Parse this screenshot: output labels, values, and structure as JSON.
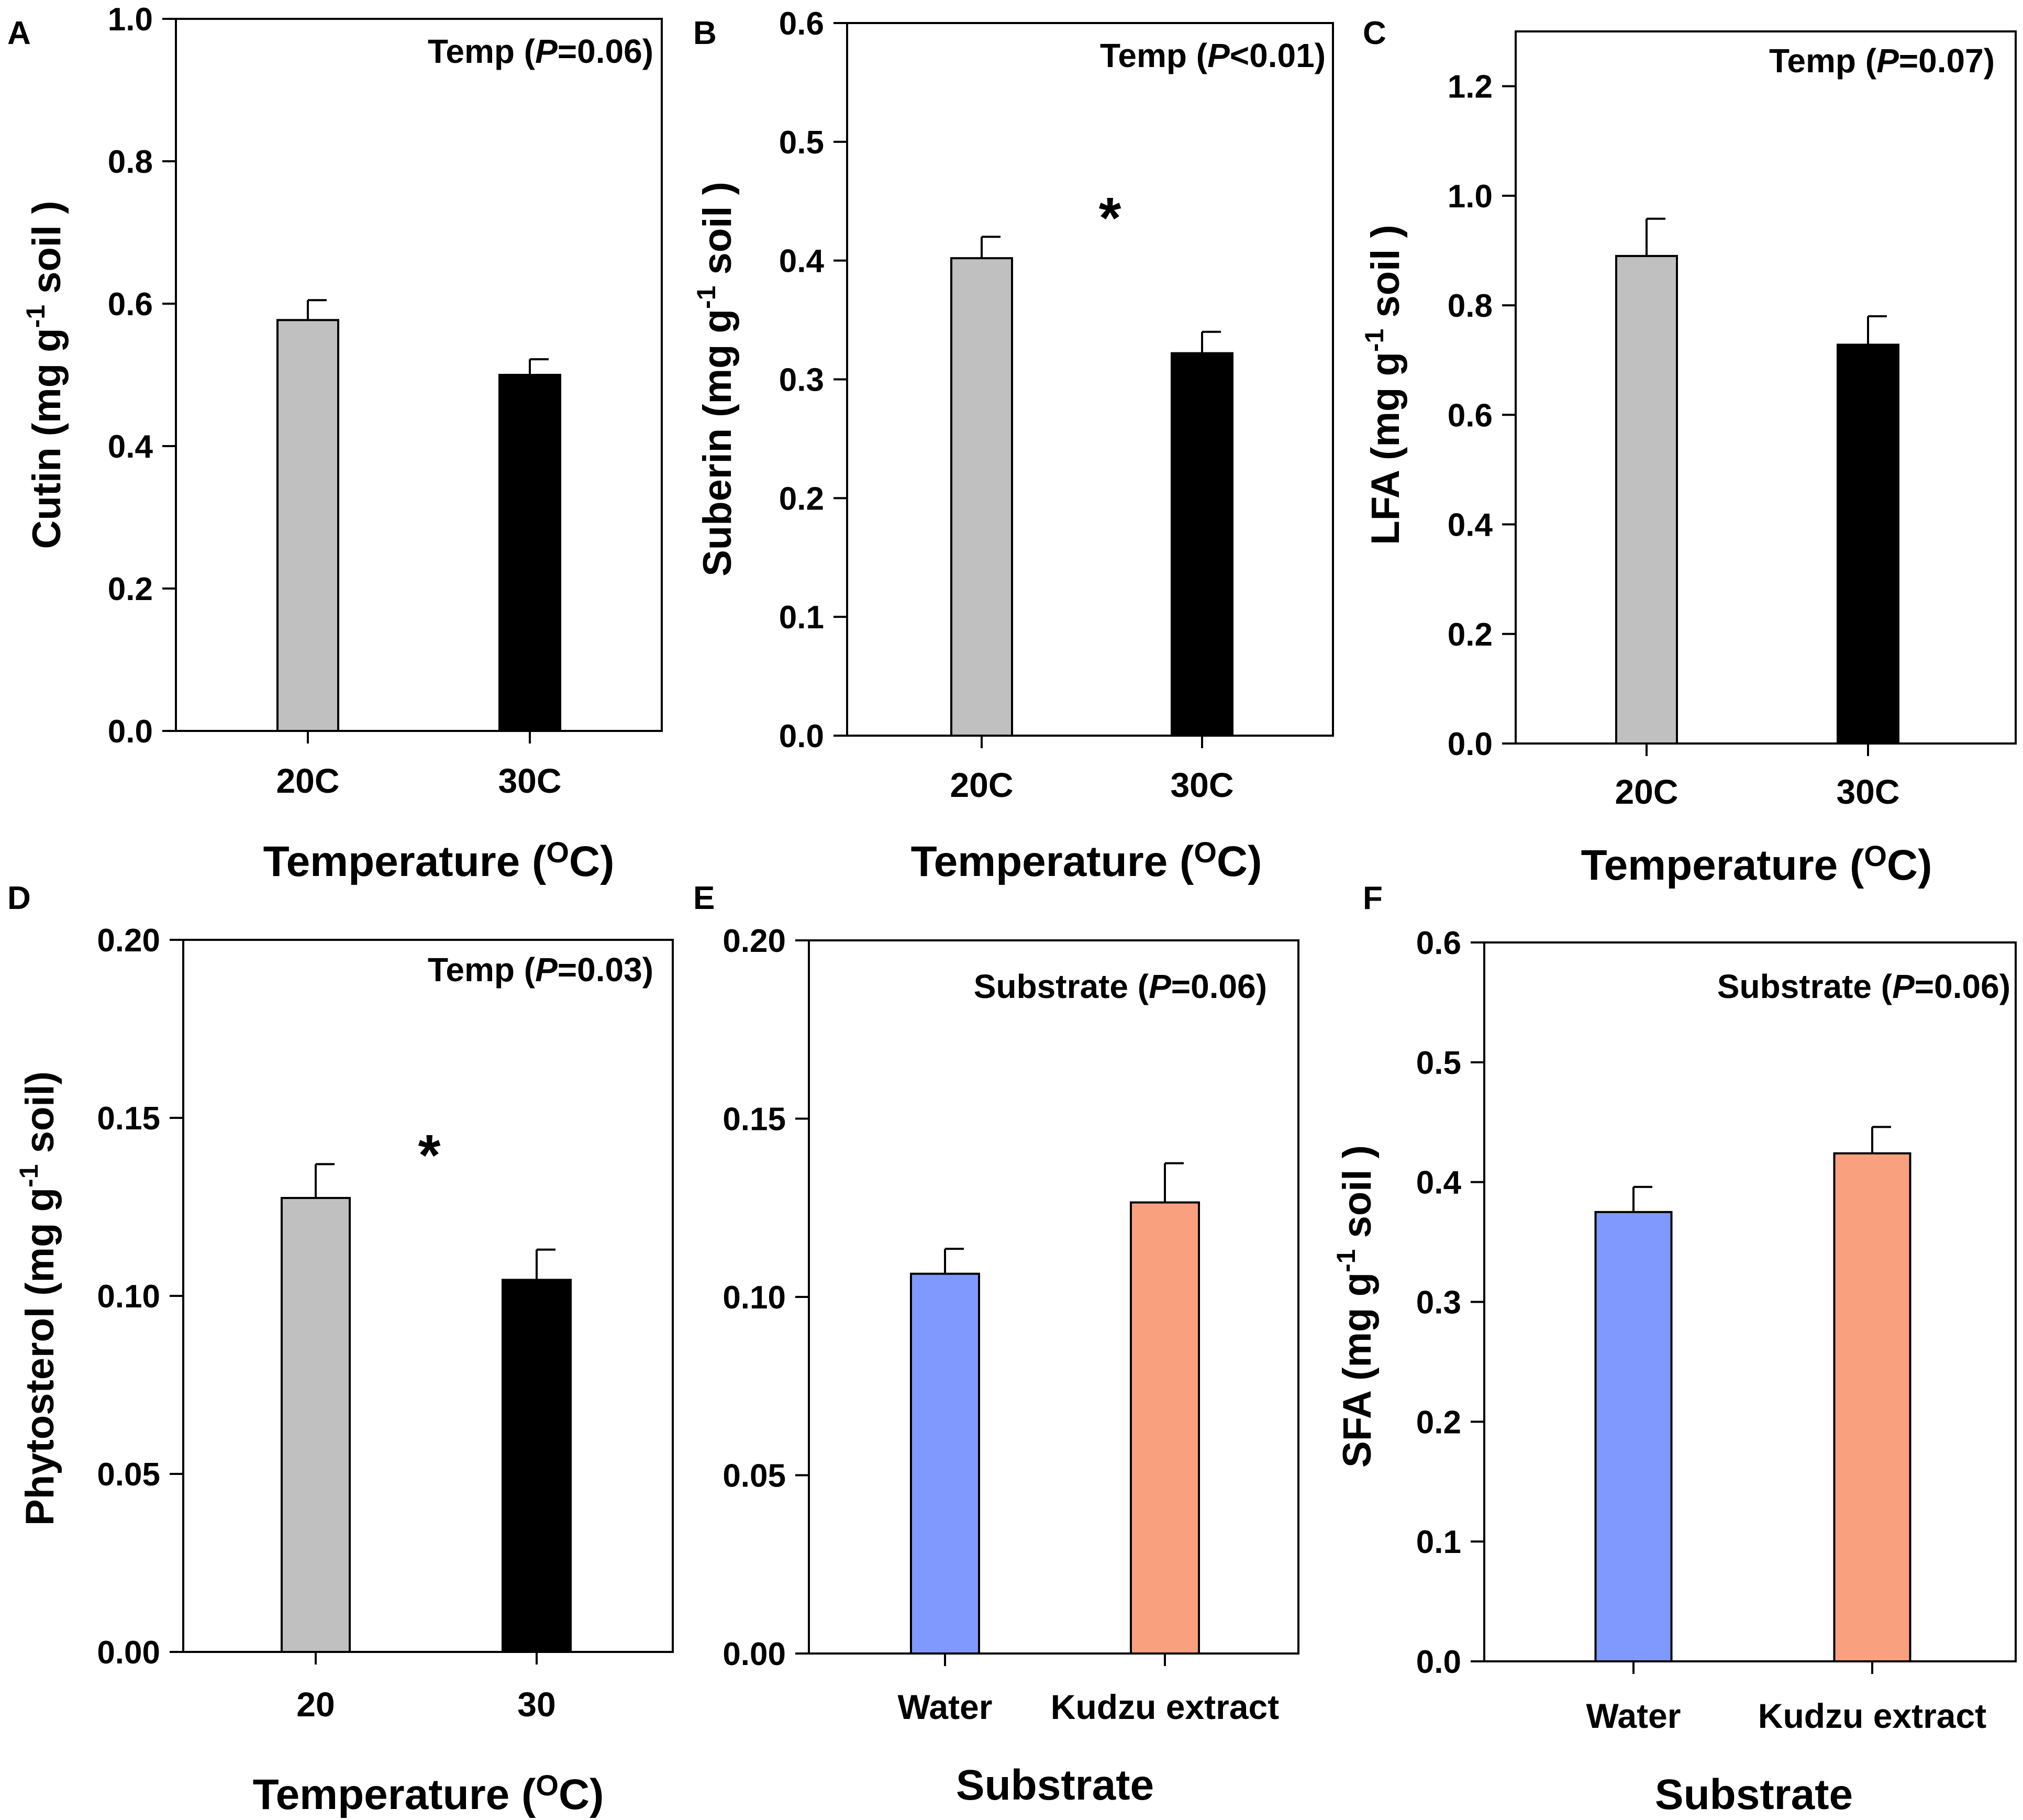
{
  "figure": {
    "background": "#ffffff"
  },
  "chart_data": [
    {
      "panel": "A",
      "type": "bar",
      "categories": [
        "20C",
        "30C"
      ],
      "values": [
        0.577,
        0.5
      ],
      "errors": [
        0.028,
        0.022
      ],
      "colors": [
        "#c0c0c0",
        "#000000"
      ],
      "ylim": [
        0,
        1.0
      ],
      "yticks": [
        "0.0",
        "0.2",
        "0.4",
        "0.6",
        "0.8",
        "1.0"
      ],
      "ylabel": {
        "main": "Cutin (mg g",
        "sup": "-1",
        "rest": " soil )"
      },
      "xlabel": {
        "main": "Temperature (",
        "sup": "O",
        "rest": "C)"
      },
      "annotation": {
        "prefix": "Temp (",
        "italic": "P",
        "suffix": "=0.06)"
      },
      "significance": ""
    },
    {
      "panel": "B",
      "type": "bar",
      "categories": [
        "20C",
        "30C"
      ],
      "values": [
        0.402,
        0.322
      ],
      "errors": [
        0.018,
        0.018
      ],
      "colors": [
        "#c0c0c0",
        "#000000"
      ],
      "ylim": [
        0,
        0.6
      ],
      "yticks": [
        "0.0",
        "0.1",
        "0.2",
        "0.3",
        "0.4",
        "0.5",
        "0.6"
      ],
      "ylabel": {
        "main": "Suberin (mg g",
        "sup": "-1",
        "rest": " soil )"
      },
      "xlabel": {
        "main": "Temperature (",
        "sup": "O",
        "rest": "C)"
      },
      "annotation": {
        "prefix": "Temp (",
        "italic": "P",
        "suffix": "<0.01)"
      },
      "significance": "*"
    },
    {
      "panel": "C",
      "type": "bar",
      "categories": [
        "20C",
        "30C"
      ],
      "values": [
        0.89,
        0.728
      ],
      "errors": [
        0.068,
        0.052
      ],
      "colors": [
        "#c0c0c0",
        "#000000"
      ],
      "ylim": [
        0,
        1.3
      ],
      "yticks": [
        "0.0",
        "0.2",
        "0.4",
        "0.6",
        "0.8",
        "1.0",
        "1.2"
      ],
      "ylabel": {
        "main": "LFA (mg g",
        "sup": "-1",
        "rest": " soil )"
      },
      "xlabel": {
        "main": "Temperature (",
        "sup": "O",
        "rest": "C)"
      },
      "annotation": {
        "prefix": "Temp (",
        "italic": "P",
        "suffix": "=0.07)"
      },
      "significance": ""
    },
    {
      "panel": "D",
      "type": "bar",
      "categories": [
        "20",
        "30"
      ],
      "values": [
        0.1275,
        0.1045
      ],
      "errors": [
        0.0095,
        0.0085
      ],
      "colors": [
        "#c0c0c0",
        "#000000"
      ],
      "ylim": [
        0,
        0.2
      ],
      "yticks": [
        "0.00",
        "0.05",
        "0.10",
        "0.15",
        "0.20"
      ],
      "ylabel": {
        "main": "Phytosterol (mg g",
        "sup": "-1",
        "rest": " soil)"
      },
      "xlabel": {
        "main": "Temperature (",
        "sup": "O",
        "rest": "C)"
      },
      "annotation": {
        "prefix": "Temp (",
        "italic": "P",
        "suffix": "=0.03)"
      },
      "significance": "*"
    },
    {
      "panel": "E",
      "type": "bar",
      "categories": [
        "Water",
        "Kudzu extract"
      ],
      "values": [
        0.1065,
        0.1265
      ],
      "errors": [
        0.007,
        0.011
      ],
      "colors": [
        "#8099ff",
        "#f9a07f"
      ],
      "ylim": [
        0,
        0.2
      ],
      "yticks": [
        "0.00",
        "0.05",
        "0.10",
        "0.15",
        "0.20"
      ],
      "ylabel": {
        "main": "",
        "sup": "",
        "rest": ""
      },
      "xlabel": {
        "main": "Substrate",
        "sup": "",
        "rest": ""
      },
      "annotation": {
        "prefix": "Substrate (",
        "italic": "P",
        "suffix": "=0.06)"
      },
      "significance": ""
    },
    {
      "panel": "F",
      "type": "bar",
      "categories": [
        "Water",
        "Kudzu extract"
      ],
      "values": [
        0.375,
        0.424
      ],
      "errors": [
        0.021,
        0.022
      ],
      "colors": [
        "#8099ff",
        "#f9a07f"
      ],
      "ylim": [
        0,
        0.6
      ],
      "yticks": [
        "0.0",
        "0.1",
        "0.2",
        "0.3",
        "0.4",
        "0.5",
        "0.6"
      ],
      "ylabel": {
        "main": "SFA (mg g",
        "sup": "-1",
        "rest": " soil )"
      },
      "xlabel": {
        "main": "Substrate",
        "sup": "",
        "rest": ""
      },
      "annotation": {
        "prefix": "Substrate (",
        "italic": "P",
        "suffix": "=0.06)"
      },
      "significance": ""
    }
  ]
}
